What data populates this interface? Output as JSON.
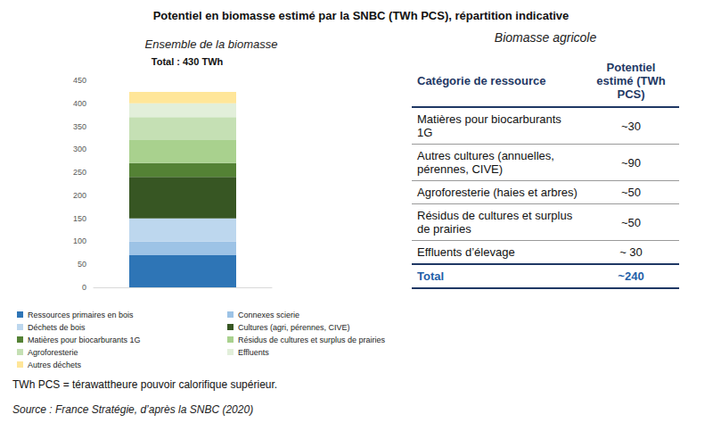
{
  "title": "Potentiel en biomasse estimé par la SNBC (TWh PCS), répartition indicative",
  "chart_data": {
    "type": "bar",
    "title": "Ensemble de la biomasse",
    "subtitle": "Total : 430 TWh",
    "stacked": true,
    "categories": [
      null
    ],
    "series": [
      {
        "name": "Ressources primaires en bois",
        "color": "#2e75b6",
        "values": [
          70
        ]
      },
      {
        "name": "Connexes scierie",
        "color": "#9dc3e6",
        "values": [
          30
        ]
      },
      {
        "name": "Déchets de bois",
        "color": "#bdd7ee",
        "values": [
          50
        ]
      },
      {
        "name": "Cultures (agri, pérennes, CIVE)",
        "color": "#375623",
        "values": [
          90
        ]
      },
      {
        "name": "Matières pour biocarburants 1G",
        "color": "#548235",
        "values": [
          30
        ]
      },
      {
        "name": "Résidus de cultures et surplus de prairies",
        "color": "#a9d18e",
        "values": [
          50
        ]
      },
      {
        "name": "Agroforesterie",
        "color": "#c5e0b4",
        "values": [
          50
        ]
      },
      {
        "name": "Effluents",
        "color": "#e2efda",
        "values": [
          30
        ]
      },
      {
        "name": "Autres déchets",
        "color": "#ffe699",
        "values": [
          25
        ]
      }
    ],
    "ylim": [
      0,
      450
    ],
    "yticks": [
      0,
      50,
      100,
      150,
      200,
      250,
      300,
      350,
      400,
      450
    ],
    "grid": false,
    "tick_labels": "y",
    "legend": "bottom"
  },
  "table": {
    "title": "Biomasse agricole",
    "header": [
      "Catégorie de ressource",
      "Potentiel estimé (TWh PCS)"
    ],
    "rows": [
      [
        "Matières pour biocarburants 1G",
        "~30"
      ],
      [
        "Autres cultures (annuelles, pérennes, CIVE)",
        "~90"
      ],
      [
        "Agroforesterie (haies et arbres)",
        "~50"
      ],
      [
        "Résidus de cultures et surplus de prairies",
        "~50"
      ],
      [
        "Effluents d’élevage",
        "~ 30"
      ]
    ],
    "total": [
      "Total",
      "~240"
    ]
  },
  "footnote": "TWh PCS = térawattheure pouvoir calorifique supérieur.",
  "source": "Source : France Stratégie, d’après la SNBC (2020)"
}
